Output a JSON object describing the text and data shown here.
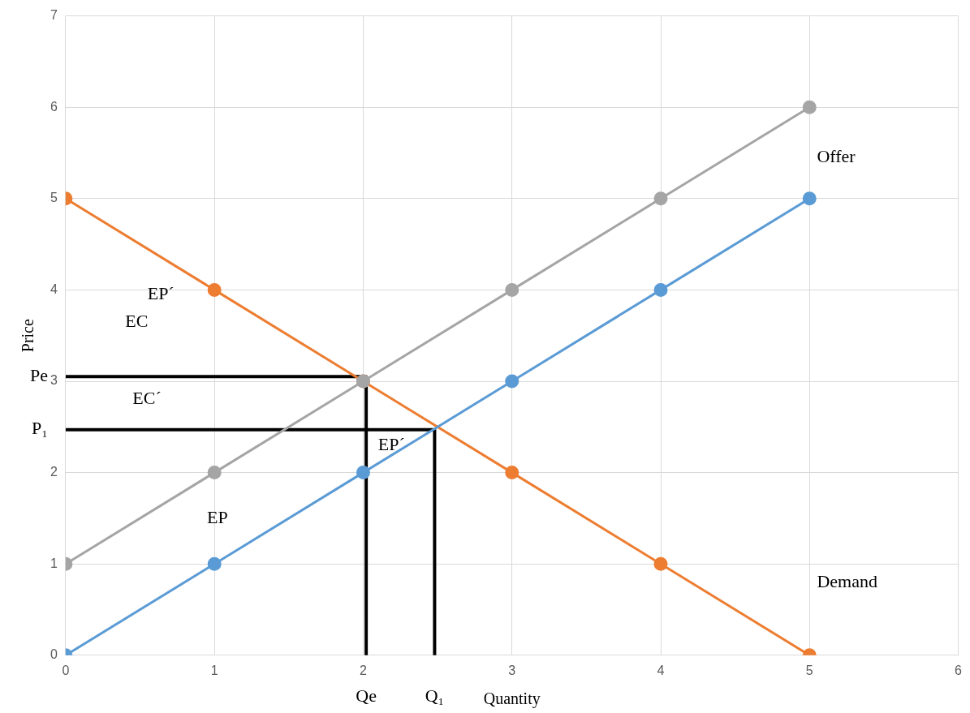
{
  "chart_data": {
    "type": "line",
    "xlabel": "Quantity",
    "ylabel": "Price",
    "xlim": [
      0,
      6
    ],
    "xticks": [
      0,
      1,
      2,
      3,
      4,
      5,
      6
    ],
    "ylim": [
      0,
      7
    ],
    "yticks": [
      0,
      1,
      2,
      3,
      4,
      5,
      6,
      7
    ],
    "grid": true,
    "legend": false,
    "marker": "circle",
    "line_style": "solid",
    "series": [
      {
        "color": "#a5a5a5",
        "x": [
          0,
          1,
          2,
          3,
          4,
          5
        ],
        "values": [
          1,
          2,
          3,
          4,
          5,
          6
        ]
      },
      {
        "color": "#5b9bd5",
        "x": [
          0,
          1,
          2,
          3,
          4,
          5
        ],
        "values": [
          0,
          1,
          2,
          3,
          4,
          5
        ]
      },
      {
        "color": "#ed7d31",
        "x": [
          0,
          1,
          2,
          3,
          4,
          5
        ],
        "values": [
          5,
          4,
          3,
          2,
          1,
          0
        ]
      },
      {
        "color": "#000000",
        "marker": "none",
        "x": [
          0,
          2.02,
          2.02
        ],
        "values": [
          3.05,
          3.05,
          0
        ]
      },
      {
        "color": "#000000",
        "marker": "none",
        "x": [
          0,
          2.48,
          2.48
        ],
        "values": [
          2.47,
          2.47,
          0
        ]
      }
    ],
    "annotations": [
      "Offer",
      "Demand",
      "EC",
      "EP´",
      "EC´",
      "EP´",
      "EP",
      {
        "text": "Pe",
        "x": 0,
        "y": 3.05
      },
      {
        "text": "P₁",
        "x": 0,
        "y": 2.47
      },
      {
        "text": "Qe",
        "x": 2.02,
        "y": 0
      },
      {
        "text": "Q₁",
        "x": 2.48,
        "y": 0
      }
    ]
  }
}
